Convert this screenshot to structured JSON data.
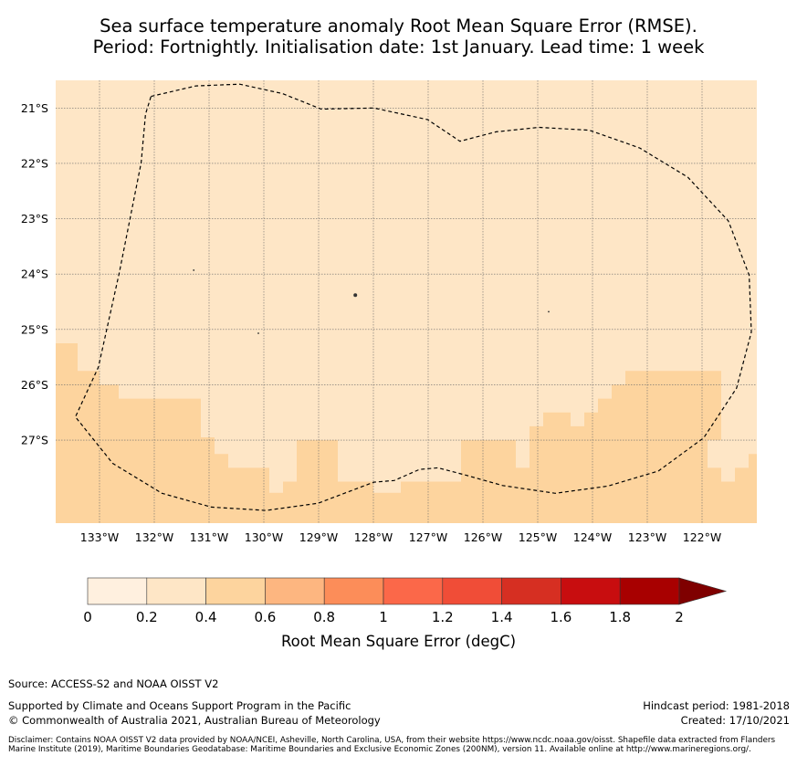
{
  "title_line1": "Sea surface temperature anomaly Root Mean Square Error (RMSE).",
  "title_line2": "Period: Fortnightly. Initialisation date: 1st January. Lead time: 1 week",
  "map": {
    "lon_range": [
      -133.8,
      -121.0
    ],
    "lat_range": [
      -28.5,
      -20.5
    ],
    "lat_ticks": [
      "21°S",
      "22°S",
      "23°S",
      "24°S",
      "25°S",
      "26°S",
      "27°S"
    ],
    "lat_tick_values": [
      -21,
      -22,
      -23,
      -24,
      -25,
      -26,
      -27
    ],
    "lon_ticks": [
      "133°W",
      "132°W",
      "131°W",
      "130°W",
      "129°W",
      "128°W",
      "127°W",
      "126°W",
      "125°W",
      "124°W",
      "123°W",
      "122°W"
    ],
    "lon_tick_values": [
      -133,
      -132,
      -131,
      -130,
      -129,
      -128,
      -127,
      -126,
      -125,
      -124,
      -123,
      -122
    ],
    "background_class_color": "#fee6c6",
    "highlight_class_color": "#fdd49e",
    "rmse_0_4_to_0_6_regions": [
      [
        [
          -133.8,
          -25.25
        ],
        [
          -133.4,
          -25.25
        ],
        [
          -133.4,
          -25.75
        ],
        [
          -133.0,
          -25.75
        ],
        [
          -133.0,
          -26.0
        ],
        [
          -132.65,
          -26.0
        ],
        [
          -132.65,
          -26.25
        ],
        [
          -131.15,
          -26.25
        ],
        [
          -131.15,
          -26.95
        ],
        [
          -130.9,
          -26.95
        ],
        [
          -130.9,
          -27.25
        ],
        [
          -130.65,
          -27.25
        ],
        [
          -130.65,
          -27.5
        ],
        [
          -129.9,
          -27.5
        ],
        [
          -129.9,
          -27.95
        ],
        [
          -129.65,
          -27.95
        ],
        [
          -129.65,
          -27.75
        ],
        [
          -129.4,
          -27.75
        ],
        [
          -129.4,
          -27.0
        ],
        [
          -128.65,
          -27.0
        ],
        [
          -128.65,
          -27.75
        ],
        [
          -128.0,
          -27.75
        ],
        [
          -128.0,
          -28.5
        ],
        [
          -133.8,
          -28.5
        ]
      ],
      [
        [
          -128.0,
          -27.95
        ],
        [
          -127.5,
          -27.95
        ],
        [
          -127.5,
          -27.75
        ],
        [
          -126.4,
          -27.75
        ],
        [
          -126.4,
          -27.0
        ],
        [
          -125.4,
          -27.0
        ],
        [
          -125.4,
          -27.5
        ],
        [
          -125.15,
          -27.5
        ],
        [
          -125.15,
          -26.75
        ],
        [
          -124.9,
          -26.75
        ],
        [
          -124.9,
          -26.5
        ],
        [
          -124.4,
          -26.5
        ],
        [
          -124.4,
          -26.75
        ],
        [
          -124.15,
          -26.75
        ],
        [
          -124.15,
          -26.5
        ],
        [
          -123.9,
          -26.5
        ],
        [
          -123.9,
          -26.25
        ],
        [
          -123.65,
          -26.25
        ],
        [
          -123.65,
          -26.0
        ],
        [
          -123.4,
          -26.0
        ],
        [
          -123.4,
          -25.75
        ],
        [
          -121.65,
          -25.75
        ],
        [
          -121.65,
          -27.0
        ],
        [
          -121.9,
          -27.0
        ],
        [
          -121.9,
          -27.5
        ],
        [
          -121.65,
          -27.5
        ],
        [
          -121.65,
          -27.75
        ],
        [
          -121.4,
          -27.75
        ],
        [
          -121.4,
          -27.5
        ],
        [
          -121.15,
          -27.5
        ],
        [
          -121.15,
          -27.25
        ],
        [
          -121.0,
          -27.25
        ],
        [
          -121.0,
          -28.5
        ],
        [
          -128.0,
          -28.5
        ]
      ]
    ],
    "boundary": [
      [
        -132.06,
        -20.79
      ],
      [
        -131.24,
        -20.6
      ],
      [
        -130.44,
        -20.57
      ],
      [
        -129.66,
        -20.74
      ],
      [
        -128.95,
        -21.02
      ],
      [
        -127.99,
        -21.0
      ],
      [
        -127.01,
        -21.21
      ],
      [
        -126.42,
        -21.6
      ],
      [
        -125.76,
        -21.43
      ],
      [
        -124.98,
        -21.35
      ],
      [
        -124.06,
        -21.4
      ],
      [
        -123.14,
        -21.72
      ],
      [
        -122.26,
        -22.25
      ],
      [
        -121.52,
        -23.04
      ],
      [
        -121.14,
        -24.02
      ],
      [
        -121.1,
        -25.05
      ],
      [
        -121.37,
        -26.06
      ],
      [
        -121.97,
        -26.96
      ],
      [
        -122.8,
        -27.56
      ],
      [
        -123.72,
        -27.83
      ],
      [
        -124.68,
        -27.96
      ],
      [
        -125.64,
        -27.82
      ],
      [
        -126.32,
        -27.63
      ],
      [
        -126.82,
        -27.5
      ],
      [
        -127.16,
        -27.53
      ],
      [
        -127.62,
        -27.73
      ],
      [
        -127.99,
        -27.76
      ],
      [
        -128.42,
        -27.92
      ],
      [
        -129.01,
        -28.14
      ],
      [
        -129.96,
        -28.27
      ],
      [
        -130.96,
        -28.21
      ],
      [
        -131.86,
        -27.96
      ],
      [
        -132.76,
        -27.42
      ],
      [
        -133.44,
        -26.58
      ],
      [
        -133.02,
        -25.68
      ],
      [
        -132.64,
        -23.98
      ],
      [
        -132.24,
        -21.99
      ],
      [
        -132.16,
        -21.11
      ],
      [
        -132.06,
        -20.79
      ]
    ],
    "islands": [
      [
        -128.33,
        -24.38
      ],
      [
        -130.1,
        -25.07
      ],
      [
        -131.28,
        -23.93
      ],
      [
        -124.8,
        -24.68
      ]
    ]
  },
  "colorbar": {
    "colors": [
      "#fff0df",
      "#fee6c6",
      "#fdd49e",
      "#fdb680",
      "#fc8d59",
      "#fb6849",
      "#f04d37",
      "#d62f22",
      "#c80d0f",
      "#a80000",
      "#7f0000"
    ],
    "ticks": [
      "0",
      "0.2",
      "0.4",
      "0.6",
      "0.8",
      "1",
      "1.2",
      "1.4",
      "1.6",
      "1.8",
      "2"
    ],
    "label": "Root Mean Square Error (degC)"
  },
  "footer": {
    "source": "Source: ACCESS-S2 and NOAA OISST V2",
    "supported": "Supported by Climate and Oceans Support Program in the Pacific",
    "copyright": "© Commonwealth of Australia 2021, Australian Bureau of Meteorology",
    "hindcast": "Hindcast period: 1981-2018",
    "created": "Created: 17/10/2021",
    "disclaimer": "Disclaimer: Contains NOAA OISST V2 data provided by NOAA/NCEI, Asheville, North Carolina, USA, from their website https://www.ncdc.noaa.gov/oisst. Shapefile data extracted from Flanders Marine Institute (2019), Maritime Boundaries Geodatabase: Maritime Boundaries and Exclusive Economic Zones (200NM), version 11. Available online at http://www.marineregions.org/."
  }
}
